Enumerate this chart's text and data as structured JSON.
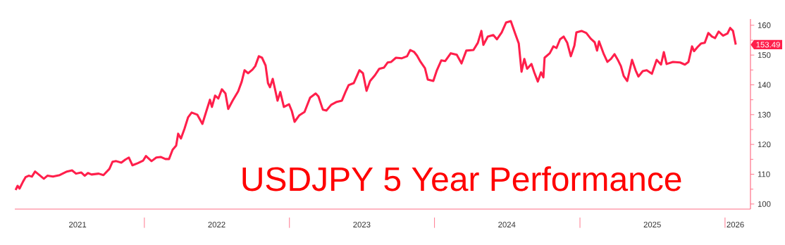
{
  "chart_data": {
    "type": "line",
    "title": "USDJPY 5 Year Performance",
    "color": "#ff1f4b",
    "marker": "none",
    "grid": false,
    "x": [
      "2021-02-11",
      "2021-02-16",
      "2021-02-21",
      "2021-03-02",
      "2021-03-08",
      "2021-03-16",
      "2021-03-24",
      "2021-04-01",
      "2021-04-14",
      "2021-04-23",
      "2021-05-02",
      "2021-05-16",
      "2021-06-02",
      "2021-06-20",
      "2021-07-03",
      "2021-07-13",
      "2021-07-26",
      "2021-08-04",
      "2021-08-12",
      "2021-08-21",
      "2021-09-08",
      "2021-09-20",
      "2021-10-05",
      "2021-10-13",
      "2021-10-22",
      "2021-11-04",
      "2021-11-14",
      "2021-11-23",
      "2021-12-02",
      "2021-12-15",
      "2021-12-29",
      "2022-01-05",
      "2022-01-19",
      "2022-01-31",
      "2022-02-11",
      "2022-02-23",
      "2022-03-04",
      "2022-03-13",
      "2022-03-22",
      "2022-03-27",
      "2022-04-03",
      "2022-04-12",
      "2022-04-21",
      "2022-04-30",
      "2022-05-14",
      "2022-05-27",
      "2022-06-06",
      "2022-06-15",
      "2022-06-20",
      "2022-06-28",
      "2022-07-06",
      "2022-07-15",
      "2022-07-24",
      "2022-07-31",
      "2022-08-11",
      "2022-08-25",
      "2022-09-03",
      "2022-09-10",
      "2022-09-19",
      "2022-09-30",
      "2022-10-07",
      "2022-10-16",
      "2022-10-24",
      "2022-11-02",
      "2022-11-08",
      "2022-11-13",
      "2022-11-20",
      "2022-11-25",
      "2022-12-02",
      "2022-12-09",
      "2022-12-18",
      "2022-12-31",
      "2023-01-07",
      "2023-01-14",
      "2023-01-26",
      "2023-02-08",
      "2023-02-22",
      "2023-03-08",
      "2023-03-15",
      "2023-03-26",
      "2023-04-04",
      "2023-04-16",
      "2023-04-30",
      "2023-05-13",
      "2023-05-22",
      "2023-05-30",
      "2023-06-12",
      "2023-06-26",
      "2023-07-05",
      "2023-07-14",
      "2023-07-23",
      "2023-08-04",
      "2023-08-15",
      "2023-08-27",
      "2023-09-05",
      "2023-09-14",
      "2023-09-26",
      "2023-10-10",
      "2023-10-24",
      "2023-11-01",
      "2023-11-11",
      "2023-11-18",
      "2023-11-27",
      "2023-12-08",
      "2023-12-15",
      "2023-12-29",
      "2024-01-07",
      "2024-01-18",
      "2024-01-28",
      "2024-02-11",
      "2024-02-26",
      "2024-03-09",
      "2024-03-21",
      "2024-04-08",
      "2024-04-19",
      "2024-04-28",
      "2024-05-03",
      "2024-05-14",
      "2024-05-28",
      "2024-06-06",
      "2024-06-18",
      "2024-06-29",
      "2024-07-11",
      "2024-07-22",
      "2024-07-31",
      "2024-08-07",
      "2024-08-14",
      "2024-08-21",
      "2024-09-01",
      "2024-09-08",
      "2024-09-17",
      "2024-09-25",
      "2024-10-01",
      "2024-10-04",
      "2024-10-17",
      "2024-10-26",
      "2024-11-03",
      "2024-11-12",
      "2024-11-21",
      "2024-11-30",
      "2024-12-09",
      "2024-12-18",
      "2024-12-23",
      "2025-01-05",
      "2025-01-17",
      "2025-01-28",
      "2025-02-07",
      "2025-02-13",
      "2025-02-18",
      "2025-03-02",
      "2025-03-11",
      "2025-03-20",
      "2025-03-29",
      "2025-04-07",
      "2025-04-14",
      "2025-04-21",
      "2025-04-30",
      "2025-05-05",
      "2025-05-12",
      "2025-05-21",
      "2025-05-28",
      "2025-06-08",
      "2025-06-18",
      "2025-07-01",
      "2025-07-13",
      "2025-07-24",
      "2025-07-31",
      "2025-08-07",
      "2025-08-23",
      "2025-09-10",
      "2025-09-22",
      "2025-10-01",
      "2025-10-10",
      "2025-10-15",
      "2025-10-24",
      "2025-11-02",
      "2025-11-11",
      "2025-11-20",
      "2025-11-29",
      "2025-12-07",
      "2025-12-16",
      "2025-12-27",
      "2026-01-07",
      "2026-01-14",
      "2026-01-21",
      "2026-01-28"
    ],
    "values": [
      104.7,
      106.1,
      105.2,
      107.6,
      109.0,
      109.5,
      109.2,
      110.9,
      109.5,
      108.5,
      109.5,
      109.2,
      109.7,
      110.9,
      111.3,
      110.2,
      110.6,
      109.5,
      110.4,
      109.9,
      110.2,
      109.7,
      111.8,
      114.2,
      114.4,
      113.9,
      114.9,
      115.6,
      113.0,
      113.7,
      114.6,
      116.1,
      114.4,
      115.6,
      115.8,
      115.1,
      115.1,
      118.2,
      119.6,
      123.6,
      122.0,
      125.3,
      129.1,
      130.7,
      130.0,
      126.9,
      131.2,
      135.0,
      132.6,
      136.4,
      135.4,
      138.5,
      137.1,
      131.9,
      134.7,
      137.8,
      141.1,
      144.9,
      143.9,
      145.1,
      146.3,
      149.6,
      149.1,
      146.5,
      140.6,
      139.2,
      142.0,
      139.0,
      134.7,
      137.6,
      132.6,
      133.5,
      131.2,
      127.6,
      129.8,
      130.9,
      135.7,
      137.1,
      136.1,
      131.7,
      131.4,
      133.3,
      134.3,
      134.7,
      137.6,
      139.9,
      140.6,
      144.9,
      143.9,
      138.0,
      141.3,
      143.2,
      145.4,
      145.8,
      147.5,
      147.7,
      149.1,
      148.9,
      149.6,
      151.7,
      151.0,
      149.8,
      147.7,
      145.6,
      141.8,
      141.3,
      144.9,
      148.2,
      148.0,
      150.6,
      150.1,
      147.2,
      151.5,
      151.7,
      154.1,
      158.1,
      153.4,
      156.2,
      156.7,
      155.3,
      157.6,
      160.9,
      161.4,
      157.2,
      153.9,
      144.4,
      148.7,
      145.4,
      147.0,
      144.2,
      141.1,
      144.2,
      142.5,
      149.1,
      150.6,
      152.9,
      152.4,
      155.3,
      156.2,
      154.1,
      149.6,
      153.2,
      157.6,
      158.1,
      157.4,
      155.5,
      154.3,
      151.5,
      154.6,
      150.3,
      147.7,
      148.7,
      150.3,
      148.2,
      146.3,
      143.0,
      141.3,
      144.2,
      148.4,
      144.9,
      142.8,
      144.6,
      144.9,
      143.7,
      148.4,
      146.8,
      151.0,
      147.0,
      147.7,
      147.5,
      146.8,
      147.7,
      152.9,
      151.3,
      152.7,
      153.9,
      154.1,
      157.4,
      156.2,
      155.7,
      157.9,
      156.5,
      157.2,
      159.1,
      158.1,
      153.49
    ],
    "xlim": [
      "2021-02-09",
      "2026-03-06"
    ],
    "ylim": [
      98.3,
      162.1
    ],
    "yticks": [
      100,
      110,
      120,
      130,
      140,
      150,
      160
    ],
    "xticks": [
      {
        "value": "2021-07-17",
        "label": "2021"
      },
      {
        "value": "2022-01-01",
        "label": null
      },
      {
        "value": "2022-07-02",
        "label": "2022"
      },
      {
        "value": "2023-01-01",
        "label": null
      },
      {
        "value": "2023-07-02",
        "label": "2023"
      },
      {
        "value": "2024-01-01",
        "label": null
      },
      {
        "value": "2024-07-01",
        "label": "2024"
      },
      {
        "value": "2025-01-01",
        "label": null
      },
      {
        "value": "2025-07-02",
        "label": "2025"
      },
      {
        "value": "2026-01-01",
        "label": null
      },
      {
        "value": "2026-01-27",
        "label": "2026"
      }
    ],
    "annotations": [
      {
        "text": "153.49",
        "x": "2026-01-28",
        "y": 153.49
      }
    ]
  }
}
